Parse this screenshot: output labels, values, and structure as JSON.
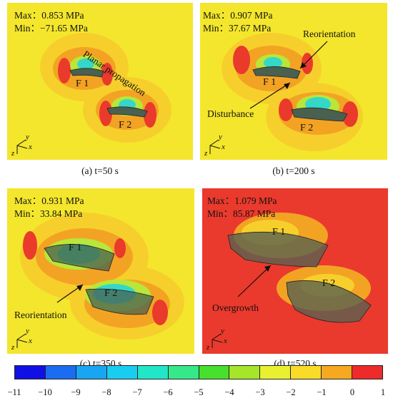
{
  "panels": [
    {
      "id": "a",
      "max": "Max：0.853 MPa",
      "min": "Min：−71.65 MPa",
      "caption": "(a) t=50 s",
      "annotations": [
        "Planar propagation"
      ],
      "fractures": [
        "F 1",
        "F 2"
      ]
    },
    {
      "id": "b",
      "max": "Max：0.907 MPa",
      "min": "Min：37.67 MPa",
      "caption": "(b) t=200 s",
      "annotations": [
        "Reorientation",
        "Disturbance"
      ],
      "fractures": [
        "F 1",
        "F 2"
      ]
    },
    {
      "id": "c",
      "max": "Max：0.931 MPa",
      "min": "Min：33.84 MPa",
      "caption": "(c) t=350 s",
      "annotations": [
        "Reorientation"
      ],
      "fractures": [
        "F 1",
        "F 2"
      ]
    },
    {
      "id": "d",
      "max": "Max：1.079 MPa",
      "min": "Min：85.87 MPa",
      "caption": "(d) t=520 s",
      "annotations": [
        "Overgrowth"
      ],
      "fractures": [
        "F 1",
        "F 2"
      ]
    }
  ],
  "axes": {
    "x": "x",
    "y": "y",
    "z": "z"
  },
  "colorbar": {
    "colors": [
      "#1010e6",
      "#1a6cf0",
      "#18a6f2",
      "#19cdf0",
      "#22e6c8",
      "#35e88a",
      "#47e02c",
      "#a6e62a",
      "#e8f030",
      "#f8dc28",
      "#f6a820",
      "#ee2a2a"
    ],
    "ticks": [
      "−11",
      "−10",
      "−9",
      "−8",
      "−7",
      "−6",
      "−5",
      "−4",
      "−3",
      "−2",
      "−1",
      "0",
      "1"
    ]
  }
}
